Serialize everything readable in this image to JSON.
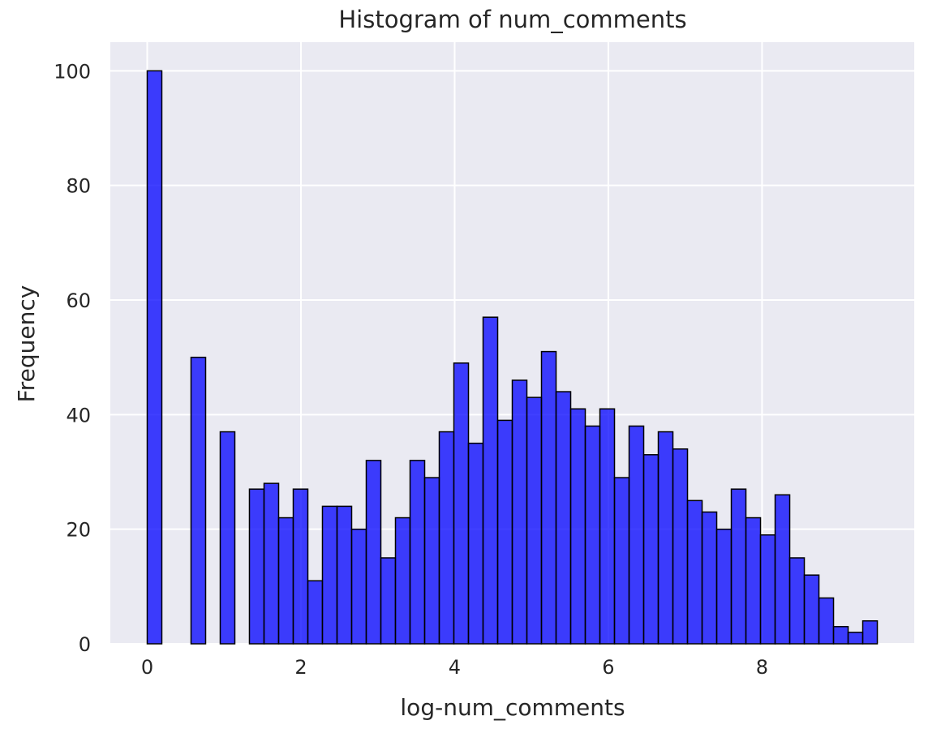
{
  "chart_data": {
    "type": "bar",
    "title": "Histogram of num_comments",
    "xlabel": "log-num_comments",
    "ylabel": "Frequency",
    "xlim": [
      -0.48,
      9.98
    ],
    "ylim": [
      0,
      105
    ],
    "xticks": [
      0,
      2,
      4,
      6,
      8
    ],
    "yticks": [
      0,
      20,
      40,
      60,
      80,
      100
    ],
    "grid": true,
    "bar_color": "#0000ff",
    "background_color": "#eaeaf2",
    "bin_width": 0.19,
    "bin_start": 0,
    "values": [
      100,
      0,
      0,
      50,
      0,
      37,
      0,
      27,
      28,
      22,
      27,
      11,
      24,
      24,
      20,
      32,
      15,
      22,
      32,
      29,
      37,
      49,
      35,
      57,
      39,
      46,
      43,
      51,
      44,
      41,
      38,
      41,
      29,
      38,
      33,
      37,
      34,
      25,
      23,
      20,
      27,
      22,
      19,
      26,
      15,
      12,
      8,
      3,
      2,
      4
    ]
  }
}
